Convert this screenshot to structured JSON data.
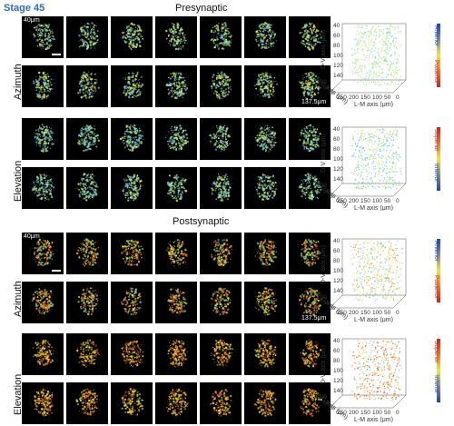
{
  "stage": "Stage 45",
  "presynaptic": {
    "title": "Presynaptic",
    "scale_label": "40μm",
    "depth_label": "137.5μm",
    "rows": [
      "Azimuth",
      "Elevation"
    ],
    "azimuth_colorbar": {
      "top": "Anterior",
      "bottom": "Posterior"
    },
    "elevation_colorbar": {
      "top": "Superior",
      "bottom": "Inferior"
    },
    "da_ticks": [
      "40",
      "60",
      "80",
      "100",
      "120",
      "140"
    ],
    "lm_ticks": [
      "250",
      "200",
      "150",
      "100",
      "50",
      "0"
    ],
    "rc_ticks": [
      "100",
      "50",
      "0"
    ]
  },
  "postsynaptic": {
    "title": "Postsynaptic",
    "scale_label": "40μm",
    "depth_label": "137.5μm",
    "rows": [
      "Azimuth",
      "Elevation"
    ],
    "azimuth_colorbar": {
      "top": "Anterior",
      "bottom": "Posterior"
    },
    "elevation_colorbar": {
      "top": "Superior",
      "bottom": "Inferior"
    },
    "da_ticks": [
      "40",
      "60",
      "80",
      "100",
      "120",
      "140"
    ],
    "lm_ticks": [
      "250",
      "200",
      "150",
      "100",
      "50",
      "0"
    ],
    "rc_ticks": [
      "100",
      "50",
      "0"
    ]
  },
  "axes": {
    "da": "D-V axis (μm)",
    "lm": "L-M axis (μm)",
    "rc": "R-C axis (μm)"
  }
}
